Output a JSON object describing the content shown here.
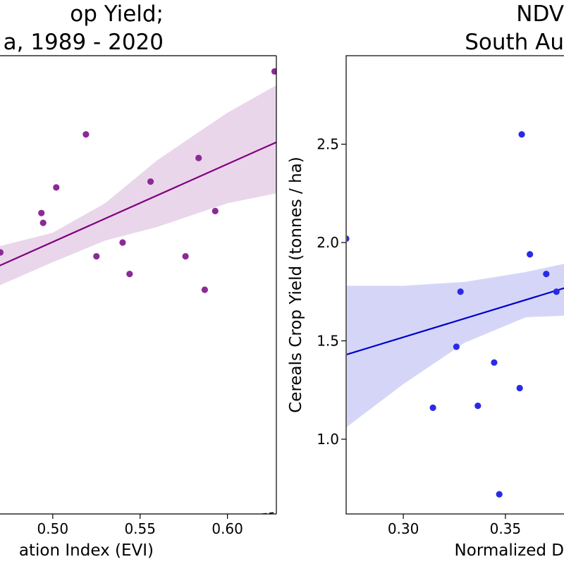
{
  "chart_data": [
    {
      "type": "scatter",
      "title_lines": [
        "op Yield;",
        "a, 1989 - 2020"
      ],
      "xlabel": "ation Index (EVI)",
      "ylabel": "",
      "xlim": [
        0.469,
        0.628
      ],
      "ylim": [
        0.62,
        2.95
      ],
      "x_ticks": [
        0.5,
        0.55,
        0.6
      ],
      "x_tick_labels": [
        "0.50",
        "0.55",
        "0.60"
      ],
      "colors": {
        "points": "#8b2a96",
        "line": "#800080",
        "band": "#e9d6ea"
      },
      "points": [
        {
          "x": 0.47,
          "y": 1.95
        },
        {
          "x": 0.4935,
          "y": 2.15
        },
        {
          "x": 0.4945,
          "y": 2.1
        },
        {
          "x": 0.502,
          "y": 2.28
        },
        {
          "x": 0.519,
          "y": 2.55
        },
        {
          "x": 0.525,
          "y": 1.93
        },
        {
          "x": 0.54,
          "y": 2.0
        },
        {
          "x": 0.544,
          "y": 1.84
        },
        {
          "x": 0.556,
          "y": 2.31
        },
        {
          "x": 0.576,
          "y": 1.93
        },
        {
          "x": 0.5835,
          "y": 2.43
        },
        {
          "x": 0.587,
          "y": 1.76
        },
        {
          "x": 0.593,
          "y": 2.16
        },
        {
          "x": 0.627,
          "y": 2.87
        }
      ],
      "fit_line": [
        {
          "x": 0.469,
          "y": 1.88
        },
        {
          "x": 0.628,
          "y": 2.51
        }
      ],
      "ci_band": [
        {
          "x": 0.469,
          "lo": 1.78,
          "hi": 1.98
        },
        {
          "x": 0.5,
          "lo": 1.9,
          "hi": 2.05
        },
        {
          "x": 0.53,
          "lo": 2.01,
          "hi": 2.2
        },
        {
          "x": 0.56,
          "lo": 2.08,
          "hi": 2.42
        },
        {
          "x": 0.6,
          "lo": 2.2,
          "hi": 2.66
        },
        {
          "x": 0.628,
          "lo": 2.25,
          "hi": 2.8
        }
      ],
      "identity_line": true
    },
    {
      "type": "scatter",
      "title_lines": [
        "NDV",
        "South Au"
      ],
      "xlabel": "Normalized D",
      "ylabel": "Cereals Crop Yield (tonnes / ha)",
      "xlim": [
        0.272,
        0.3825
      ],
      "ylim": [
        0.62,
        2.95
      ],
      "x_ticks": [
        0.3,
        0.35
      ],
      "x_tick_labels": [
        "0.30",
        "0.35"
      ],
      "y_ticks": [
        1.0,
        1.5,
        2.0,
        2.5
      ],
      "y_tick_labels": [
        "1.0",
        "1.5",
        "2.0",
        "2.5"
      ],
      "colors": {
        "points": "#2a2ae6",
        "line": "#0000cc",
        "band": "#d5d6f7"
      },
      "points": [
        {
          "x": 0.272,
          "y": 2.02
        },
        {
          "x": 0.3145,
          "y": 1.16
        },
        {
          "x": 0.326,
          "y": 1.47
        },
        {
          "x": 0.328,
          "y": 1.75
        },
        {
          "x": 0.3365,
          "y": 1.17
        },
        {
          "x": 0.3445,
          "y": 1.39
        },
        {
          "x": 0.347,
          "y": 0.72
        },
        {
          "x": 0.357,
          "y": 1.26
        },
        {
          "x": 0.358,
          "y": 2.55
        },
        {
          "x": 0.362,
          "y": 1.94
        },
        {
          "x": 0.37,
          "y": 1.84
        },
        {
          "x": 0.375,
          "y": 1.75
        }
      ],
      "fit_line": [
        {
          "x": 0.272,
          "y": 1.43
        },
        {
          "x": 0.3825,
          "y": 1.78
        }
      ],
      "ci_band": [
        {
          "x": 0.272,
          "lo": 1.06,
          "hi": 1.78
        },
        {
          "x": 0.3,
          "lo": 1.28,
          "hi": 1.78
        },
        {
          "x": 0.33,
          "lo": 1.49,
          "hi": 1.8
        },
        {
          "x": 0.36,
          "lo": 1.62,
          "hi": 1.85
        },
        {
          "x": 0.3825,
          "lo": 1.63,
          "hi": 1.9
        }
      ],
      "identity_line": true
    }
  ]
}
